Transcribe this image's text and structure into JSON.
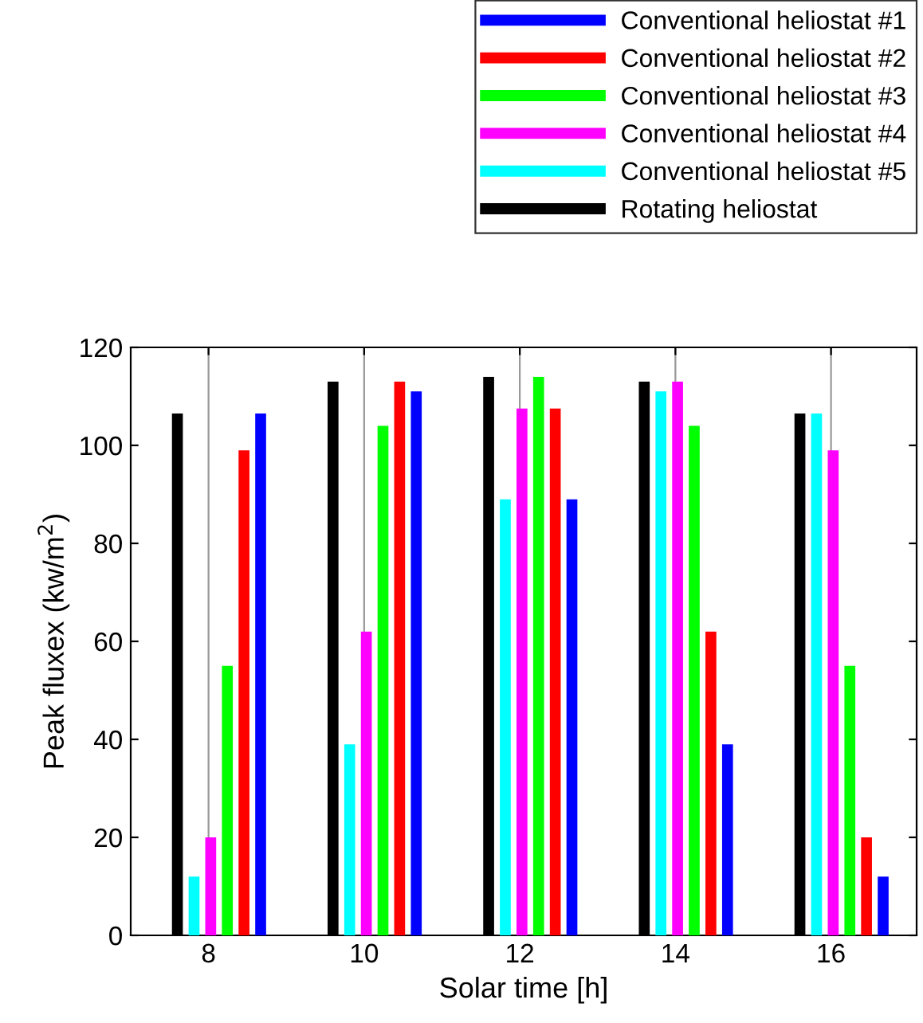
{
  "chart_data": {
    "type": "bar",
    "xlabel": "Solar time [h]",
    "ylabel": "Peak fluxex (kw/m$^{2}$)",
    "categories": [
      "8",
      "10",
      "12",
      "14",
      "16"
    ],
    "ylim": [
      0,
      120
    ],
    "yticks": [
      0,
      20,
      40,
      60,
      80,
      100,
      120
    ],
    "grid": "x",
    "legend": "top right",
    "series": [
      {
        "name": "Conventional heliostat #1",
        "color": "#0000ff",
        "values": [
          106.5,
          111,
          89,
          39,
          12
        ]
      },
      {
        "name": "Conventional heliostat #2",
        "color": "#ff0000",
        "values": [
          99,
          113,
          107.5,
          62,
          20
        ]
      },
      {
        "name": "Conventional heliostat #3",
        "color": "#00ff00",
        "values": [
          55,
          104,
          114,
          104,
          55
        ]
      },
      {
        "name": "Conventional heliostat #4",
        "color": "#ff00ff",
        "values": [
          20,
          62,
          107.5,
          113,
          99
        ]
      },
      {
        "name": "Conventional heliostat #5",
        "color": "#00ffff",
        "values": [
          12,
          39,
          89,
          111,
          106.5
        ]
      },
      {
        "name": "Rotating heliostat",
        "color": "#000000",
        "values": [
          106.5,
          113,
          114,
          113,
          106.5
        ]
      }
    ]
  }
}
